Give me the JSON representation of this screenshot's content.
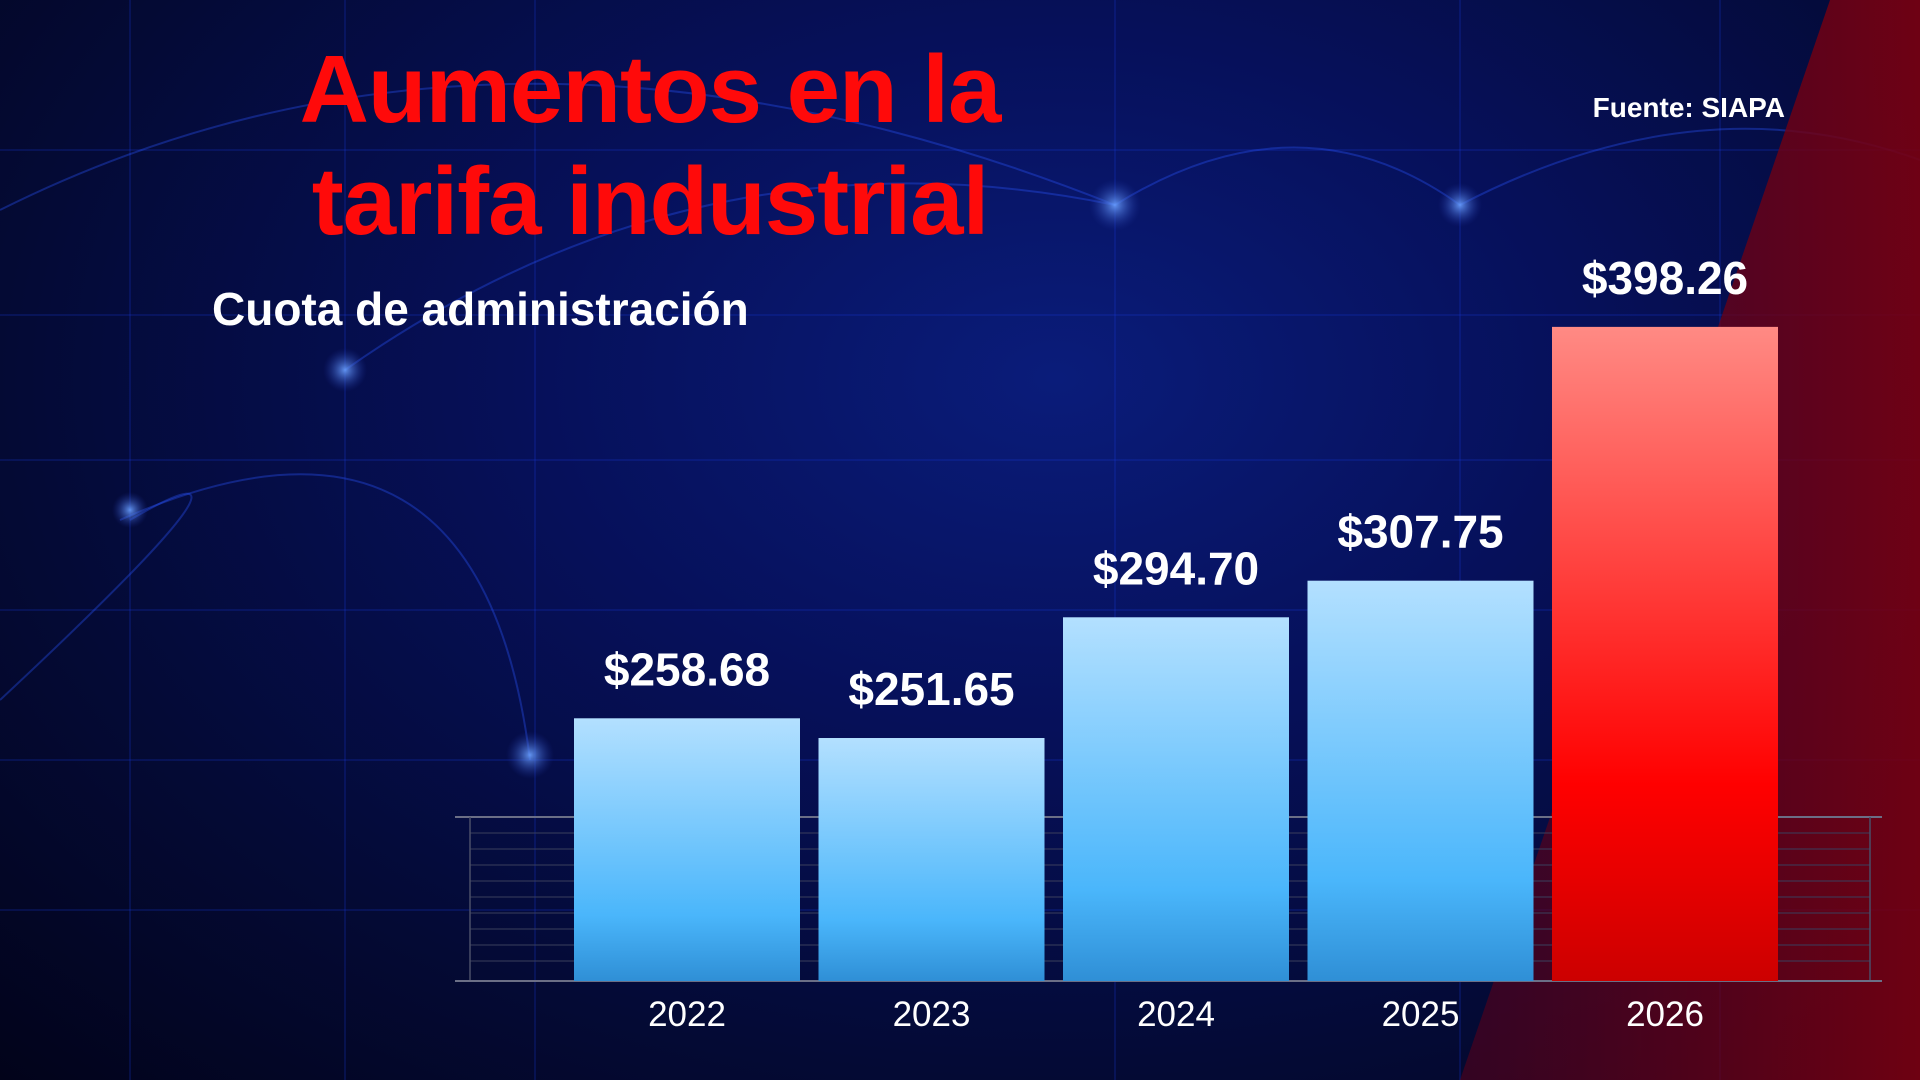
{
  "title": "Aumentos en la tarifa industrial",
  "subtitle": "Cuota de administración",
  "source": "Fuente: SIAPA",
  "colors": {
    "title": "#ff0a0a",
    "bar_blue_top": "#b3e0ff",
    "bar_blue_mid": "#4ab6fb",
    "bar_blue_bottom": "#2f8fd6",
    "bar_red_top": "#ff8a84",
    "bar_red_mid": "#ff0000",
    "bar_red_bottom": "#cc0000",
    "background": "#04061f"
  },
  "chart_data": {
    "type": "bar",
    "title": "Aumentos en la tarifa industrial",
    "subtitle": "Cuota de administración",
    "categories": [
      "2022",
      "2023",
      "2024",
      "2025",
      "2026"
    ],
    "values": [
      258.68,
      251.65,
      294.7,
      307.75,
      398.26
    ],
    "data_labels": [
      "$258.68",
      "$251.65",
      "$294.70",
      "$307.75",
      "$398.26"
    ],
    "highlight_index": 4,
    "ylim": [
      165,
      400
    ],
    "xlabel": "",
    "ylabel": "",
    "legend": "none"
  }
}
